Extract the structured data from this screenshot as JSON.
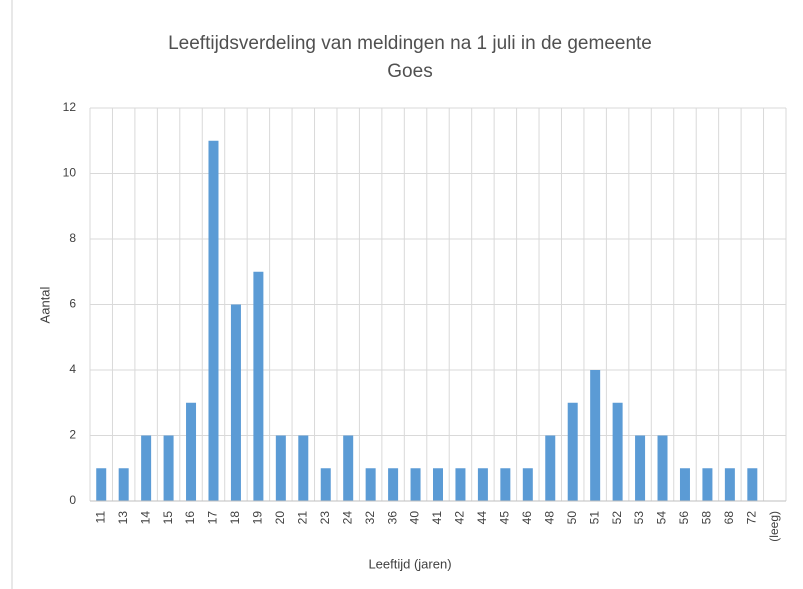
{
  "chart_data": {
    "type": "bar",
    "title": [
      "Leeftijdsverdeling van meldingen na 1 juli in de gemeente",
      "Goes"
    ],
    "x_label": "Leeftijd (jaren)",
    "y_label": "Aantal",
    "categories": [
      "11",
      "13",
      "14",
      "15",
      "16",
      "17",
      "18",
      "19",
      "20",
      "21",
      "23",
      "24",
      "32",
      "36",
      "40",
      "41",
      "42",
      "44",
      "45",
      "46",
      "48",
      "50",
      "51",
      "52",
      "53",
      "54",
      "56",
      "58",
      "68",
      "72",
      "(leeg)"
    ],
    "values": [
      1,
      1,
      2,
      2,
      3,
      11,
      6,
      7,
      2,
      2,
      1,
      2,
      1,
      1,
      1,
      1,
      1,
      1,
      1,
      1,
      2,
      3,
      4,
      3,
      2,
      2,
      1,
      1,
      1,
      1,
      null
    ],
    "color": "#5b9bd5",
    "ylim": [
      0,
      12
    ],
    "yticks": [
      0,
      2,
      4,
      6,
      8,
      10,
      12
    ],
    "grid": true
  }
}
